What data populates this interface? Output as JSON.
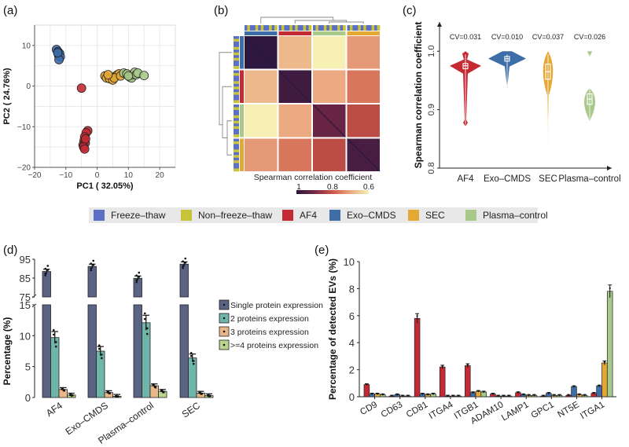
{
  "legend_bar": {
    "items": [
      {
        "label": "Freeze–thaw",
        "color": "#5b6fc6"
      },
      {
        "label": "Non–freeze–thaw",
        "color": "#c7c43a"
      },
      {
        "label": "AF4",
        "color": "#c42a33"
      },
      {
        "label": "Exo–CMDS",
        "color": "#3d6ea8"
      },
      {
        "label": "SEC",
        "color": "#e6a834"
      },
      {
        "label": "Plasma–control",
        "color": "#a8c98a"
      }
    ]
  },
  "chart_data": [
    {
      "panel": "(a)",
      "type": "scatter",
      "title": "",
      "xlabel": "PC1 ( 32.05%)",
      "ylabel": "PC2 ( 24.76%)",
      "xlim": [
        -20,
        25
      ],
      "ylim": [
        -20,
        15
      ],
      "xticks": [
        -20,
        -10,
        0,
        10,
        20
      ],
      "yticks": [
        -20,
        -10,
        0,
        10
      ],
      "grid": true,
      "series": [
        {
          "name": "Exo–CMDS",
          "color": "#3d6ea8",
          "points": [
            [
              -13,
              9
            ],
            [
              -12.5,
              8.5
            ],
            [
              -12,
              8
            ],
            [
              -12.3,
              7.5
            ],
            [
              -11.8,
              7.2
            ],
            [
              -12.2,
              6.5
            ],
            [
              -12.6,
              8.2
            ]
          ]
        },
        {
          "name": "AF4",
          "color": "#c42a33",
          "points": [
            [
              -5,
              -0.5
            ],
            [
              -3,
              -11
            ],
            [
              -3.5,
              -11.5
            ],
            [
              -4,
              -12.5
            ],
            [
              -4.2,
              -13.5
            ],
            [
              -4.5,
              -14.5
            ],
            [
              -3.8,
              -14
            ],
            [
              -4.3,
              -15
            ],
            [
              -4,
              -15.5
            ],
            [
              -3.7,
              -13
            ]
          ]
        },
        {
          "name": "SEC",
          "color": "#e6a834",
          "points": [
            [
              2.5,
              2.5
            ],
            [
              3,
              2
            ],
            [
              4,
              1.8
            ],
            [
              5,
              1.5
            ],
            [
              6,
              2.5
            ],
            [
              6.5,
              2.8
            ],
            [
              7,
              3
            ],
            [
              5.5,
              2
            ],
            [
              3.5,
              2.8
            ],
            [
              7.5,
              2.5
            ]
          ]
        },
        {
          "name": "Plasma–control",
          "color": "#a8c98a",
          "points": [
            [
              8.5,
              3.2
            ],
            [
              9.5,
              3
            ],
            [
              10.5,
              2.2
            ],
            [
              11,
              2
            ],
            [
              11.5,
              2.8
            ],
            [
              12,
              3.4
            ],
            [
              12.5,
              2.8
            ],
            [
              13,
              3.2
            ],
            [
              15,
              2.6
            ],
            [
              10,
              2.5
            ]
          ]
        }
      ]
    },
    {
      "panel": "(b)",
      "type": "heatmap",
      "title": "",
      "colorbar_title": "Spearman correlation coefficient",
      "colorbar_ticks": [
        "1",
        "0.8",
        "0.6"
      ],
      "colorbar_range": [
        1,
        0.6
      ],
      "groups": [
        "Exo–CMDS",
        "AF4",
        "Plasma–control",
        "SEC"
      ],
      "block_means": [
        [
          0.99,
          0.68,
          0.6,
          0.72
        ],
        [
          0.68,
          0.97,
          0.7,
          0.76
        ],
        [
          0.6,
          0.7,
          0.92,
          0.82
        ],
        [
          0.72,
          0.76,
          0.82,
          0.96
        ]
      ]
    },
    {
      "panel": "(c)",
      "type": "violin",
      "title": "",
      "ylabel": "Spearman correlation coefficient",
      "ylim": [
        0.8,
        1.05
      ],
      "yticks": [
        "0.8",
        "0.9",
        "1.0"
      ],
      "categories": [
        "AF4",
        "Exo–CMDS",
        "SEC",
        "Plasma–control"
      ],
      "colors": [
        "#c42a33",
        "#3d6ea8",
        "#e6a834",
        "#a8c98a"
      ],
      "annotations": [
        "CV=0.031",
        "CV=0.010",
        "CV=0.037",
        "CV=0.026"
      ],
      "medians": [
        0.975,
        0.987,
        0.965,
        0.918
      ],
      "q1": [
        0.97,
        0.983,
        0.952,
        0.909
      ],
      "q3": [
        0.979,
        0.991,
        0.978,
        0.927
      ],
      "mins": [
        0.872,
        0.937,
        0.833,
        0.881
      ],
      "maxs": [
        1.0,
        1.0,
        1.0,
        1.0
      ]
    },
    {
      "panel": "(d)",
      "type": "bar",
      "title": "",
      "ylabel": "Percentage (%)",
      "categories": [
        "AF4",
        "Exo–CMDS",
        "Plasma–control",
        "SEC"
      ],
      "y_break": [
        15,
        75
      ],
      "yticks_lower": [
        "0",
        "5",
        "10",
        "15"
      ],
      "yticks_upper": [
        "75",
        "85",
        "95"
      ],
      "legend": "right",
      "series": [
        {
          "name": "Single protein expression",
          "color": "#5a6384",
          "values": [
            88.5,
            91.2,
            84.9,
            92.4
          ]
        },
        {
          "name": "2 proteins expression",
          "color": "#6fb5a9",
          "values": [
            9.7,
            7.5,
            12.1,
            6.4
          ]
        },
        {
          "name": "3 proteins expression",
          "color": "#eab788",
          "values": [
            1.3,
            0.8,
            1.9,
            0.7
          ]
        },
        {
          "name": ">=4 proteins expression",
          "color": "#b8d48e",
          "values": [
            0.4,
            0.2,
            1.0,
            0.3
          ]
        }
      ]
    },
    {
      "panel": "(e)",
      "type": "bar",
      "title": "",
      "ylabel": "Percentage of detected EVs (%)",
      "ylim": [
        0,
        10
      ],
      "yticks": [
        "0",
        "2",
        "4",
        "6",
        "8",
        "10"
      ],
      "categories": [
        "CD9",
        "CD63",
        "CD81",
        "ITGA4",
        "ITGB1",
        "ADAM10",
        "LAMP1",
        "GPC1",
        "NT5E",
        "ITGA1"
      ],
      "series": [
        {
          "name": "AF4",
          "color": "#c42a33",
          "values": [
            0.9,
            0.05,
            5.8,
            2.2,
            2.3,
            0.2,
            0.3,
            0.05,
            0.1,
            0.25
          ]
        },
        {
          "name": "Exo–CMDS",
          "color": "#3d6ea8",
          "values": [
            0.2,
            0.15,
            0.2,
            0.05,
            0.3,
            0.05,
            0.15,
            0.25,
            0.75,
            0.8
          ]
        },
        {
          "name": "SEC",
          "color": "#e6a834",
          "values": [
            0.2,
            0.05,
            0.15,
            0.05,
            0.4,
            0.05,
            0.1,
            0.1,
            0.15,
            2.5
          ]
        },
        {
          "name": "Plasma–control",
          "color": "#a8c98a",
          "values": [
            0.15,
            0.05,
            0.2,
            0.05,
            0.35,
            0.05,
            0.1,
            0.1,
            0.1,
            7.8
          ]
        }
      ]
    }
  ]
}
